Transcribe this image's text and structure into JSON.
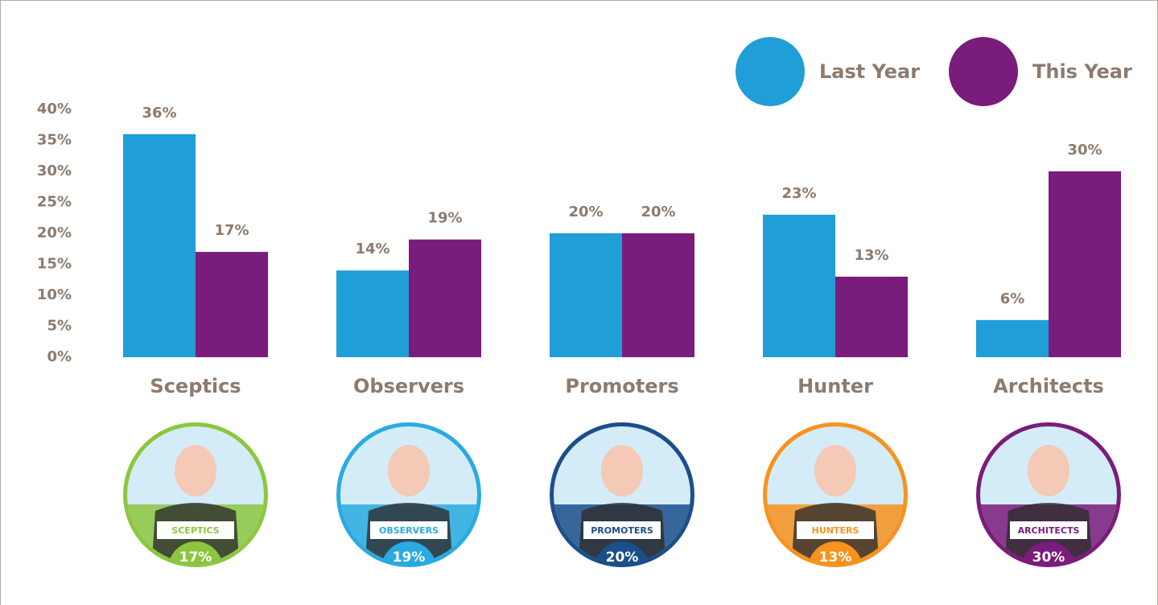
{
  "chart_data": {
    "type": "bar",
    "categories": [
      "Sceptics",
      "Observers",
      "Promoters",
      "Hunter",
      "Architects"
    ],
    "series": [
      {
        "name": "Last Year",
        "color": "#1f9ed8",
        "values": [
          36,
          14,
          20,
          23,
          6
        ],
        "value_labels": [
          "36%",
          "14%",
          "20%",
          "23%",
          "6%"
        ]
      },
      {
        "name": "This Year",
        "color": "#7a1c7b",
        "values": [
          17,
          19,
          20,
          13,
          30
        ],
        "value_labels": [
          "17%",
          "19%",
          "20%",
          "13%",
          "30%"
        ]
      }
    ],
    "ylim": [
      0,
      40
    ],
    "yticks": [
      {
        "value": 0,
        "label": "0%"
      },
      {
        "value": 5,
        "label": "5%"
      },
      {
        "value": 10,
        "label": "10%"
      },
      {
        "value": 15,
        "label": "15%"
      },
      {
        "value": 20,
        "label": "20%"
      },
      {
        "value": 25,
        "label": "25%"
      },
      {
        "value": 30,
        "label": "30%"
      },
      {
        "value": 35,
        "label": "35%"
      },
      {
        "value": 40,
        "label": "40%"
      }
    ],
    "grid": false,
    "legend": "top-right"
  },
  "badges": [
    {
      "label": "SCEPTICS",
      "percent": "17%",
      "color": "#8cc63f"
    },
    {
      "label": "OBSERVERS",
      "percent": "19%",
      "color": "#29abe2"
    },
    {
      "label": "PROMOTERS",
      "percent": "20%",
      "color": "#1b4f8a"
    },
    {
      "label": "HUNTERS",
      "percent": "13%",
      "color": "#f7931e"
    },
    {
      "label": "ARCHITECTS",
      "percent": "30%",
      "color": "#7a1c7b"
    }
  ]
}
